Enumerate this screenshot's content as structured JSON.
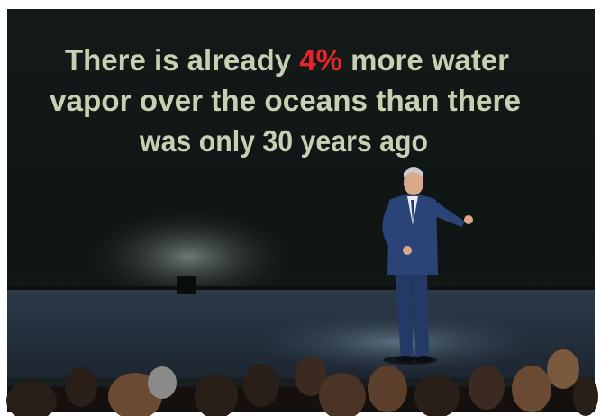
{
  "slide": {
    "line1_start": "There is already ",
    "highlight": "4%",
    "line1_end": " more water",
    "line2": "vapor over the oceans than there",
    "line3": "was only 30 years ago"
  }
}
